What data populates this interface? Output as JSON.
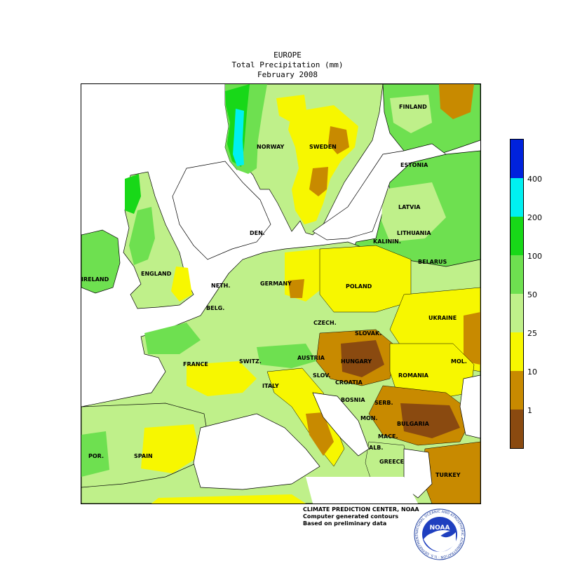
{
  "title": {
    "line1": "EUROPE",
    "line2": "Total Precipitation (mm)",
    "line3": "February 2008"
  },
  "legend": {
    "bands": [
      {
        "label": "400",
        "color": "#0022dd"
      },
      {
        "label": "200",
        "color": "#00f0f0"
      },
      {
        "label": "100",
        "color": "#18d818"
      },
      {
        "label": "50",
        "color": "#6ee050"
      },
      {
        "label": "25",
        "color": "#bff08a"
      },
      {
        "label": "10",
        "color": "#f7f700"
      },
      {
        "label": "1",
        "color": "#c88a00"
      },
      {
        "label": "",
        "color": "#8a4a10"
      }
    ]
  },
  "countries": [
    {
      "name": "FINLAND"
    },
    {
      "name": "NORWAY"
    },
    {
      "name": "SWEDEN"
    },
    {
      "name": "ESTONIA"
    },
    {
      "name": "LATVIA"
    },
    {
      "name": "LITHUANIA"
    },
    {
      "name": "KALININ."
    },
    {
      "name": "BELARUS"
    },
    {
      "name": "DEN."
    },
    {
      "name": "IRELAND"
    },
    {
      "name": "ENGLAND"
    },
    {
      "name": "NETH."
    },
    {
      "name": "BELG."
    },
    {
      "name": "GERMANY"
    },
    {
      "name": "POLAND"
    },
    {
      "name": "UKRAINE"
    },
    {
      "name": "CZECH."
    },
    {
      "name": "SLOVAK."
    },
    {
      "name": "FRANCE"
    },
    {
      "name": "SWITZ."
    },
    {
      "name": "AUSTRIA"
    },
    {
      "name": "HUNGARY"
    },
    {
      "name": "MOL."
    },
    {
      "name": "SLOV."
    },
    {
      "name": "CROATIA"
    },
    {
      "name": "ROMANIA"
    },
    {
      "name": "ITALY"
    },
    {
      "name": "BOSNIA"
    },
    {
      "name": "SERB."
    },
    {
      "name": "MON."
    },
    {
      "name": "BULGARIA"
    },
    {
      "name": "MACE."
    },
    {
      "name": "ALB."
    },
    {
      "name": "GREECE"
    },
    {
      "name": "POR."
    },
    {
      "name": "SPAIN"
    },
    {
      "name": "TURKEY"
    }
  ],
  "credits": {
    "line1": "CLIMATE PREDICTION CENTER, NOAA",
    "line2": "Computer generated contours",
    "line3": "Based on preliminary data"
  },
  "logo": {
    "text": "NOAA",
    "ring_text": "NATIONAL OCEANIC AND ATMOSPHERIC ADMINISTRATION · U.S. DEPARTMENT OF COMMERCE",
    "icon": "noaa-logo-icon"
  }
}
